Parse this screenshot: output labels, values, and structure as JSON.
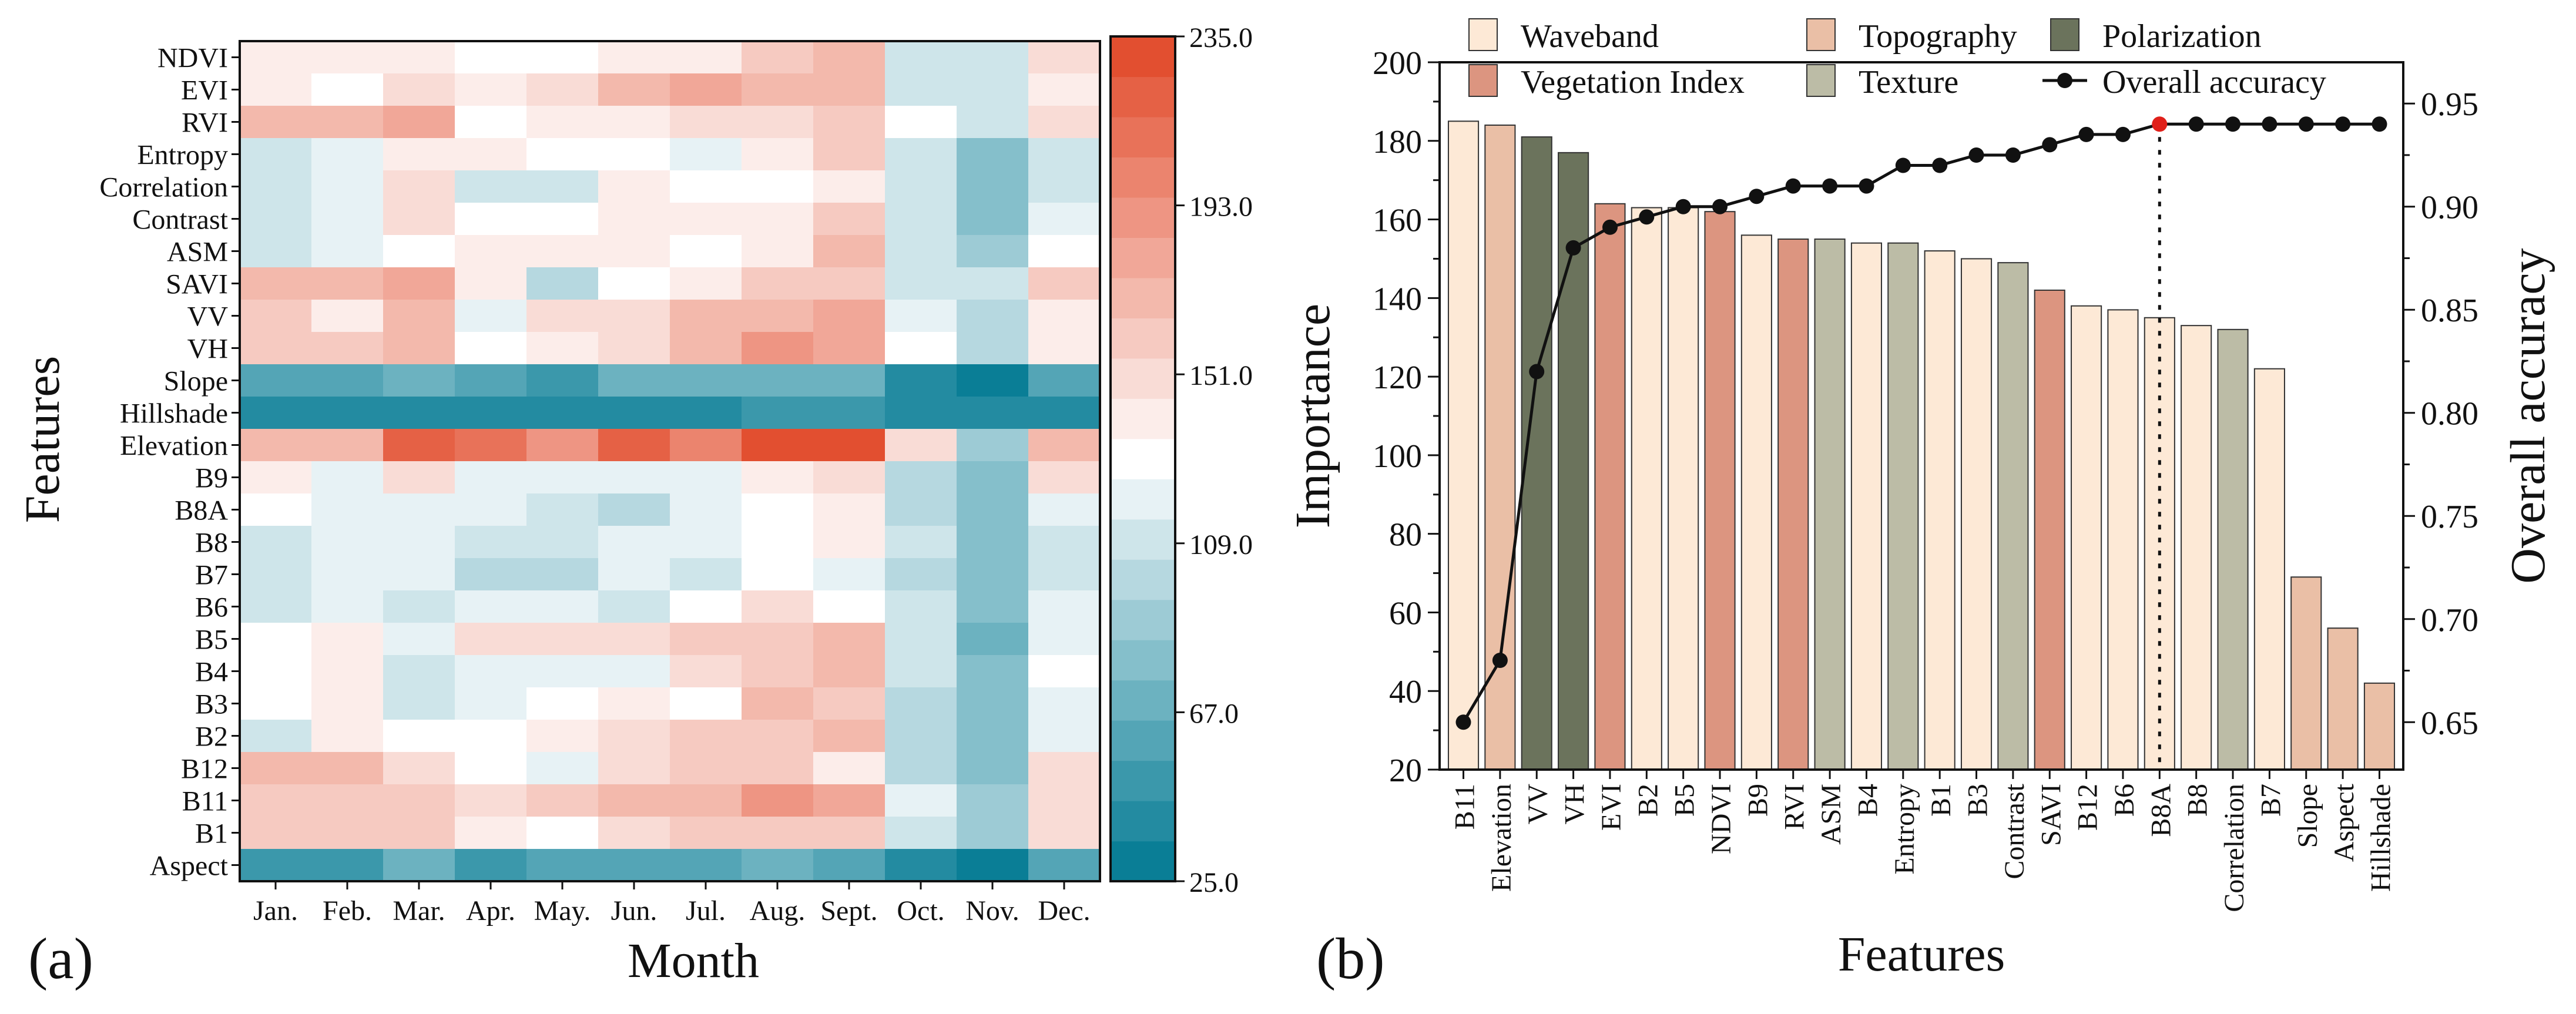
{
  "panel_labels": {
    "a": "(a)",
    "b": "(b)"
  },
  "colors": {
    "waveband": "#fde9d6",
    "vegetation_index": "#dc9580",
    "topography": "#eabfa6",
    "texture": "#bcbca6",
    "polarization": "#6b735c",
    "line": "#111111",
    "highlight": "#e0201a"
  },
  "chart_data": [
    {
      "type": "heatmap",
      "title": "",
      "xlabel": "Month",
      "ylabel": "Features",
      "x_categories": [
        "Jan.",
        "Feb.",
        "Mar.",
        "Apr.",
        "May.",
        "Jun.",
        "Jul.",
        "Aug.",
        "Sept.",
        "Oct.",
        "Nov.",
        "Dec."
      ],
      "y_categories": [
        "NDVI",
        "EVI",
        "RVI",
        "Entropy",
        "Correlation",
        "Contrast",
        "ASM",
        "SAVI",
        "VV",
        "VH",
        "Slope",
        "Hillshade",
        "Elevation",
        "B9",
        "B8A",
        "B8",
        "B7",
        "B6",
        "B5",
        "B4",
        "B3",
        "B2",
        "B12",
        "B11",
        "B1",
        "Aspect"
      ],
      "values": [
        [
          135,
          135,
          135,
          130,
          128,
          135,
          135,
          162,
          165,
          112,
          112,
          150
        ],
        [
          138,
          128,
          145,
          135,
          145,
          168,
          180,
          165,
          165,
          112,
          108,
          140
        ],
        [
          168,
          168,
          178,
          128,
          140,
          138,
          145,
          148,
          160,
          125,
          108,
          150
        ],
        [
          112,
          118,
          138,
          138,
          125,
          128,
          122,
          135,
          160,
          108,
          78,
          108
        ],
        [
          112,
          118,
          148,
          105,
          110,
          135,
          130,
          130,
          135,
          108,
          80,
          112
        ],
        [
          105,
          118,
          148,
          128,
          128,
          135,
          135,
          140,
          155,
          105,
          82,
          118
        ],
        [
          112,
          118,
          128,
          135,
          135,
          135,
          130,
          135,
          165,
          108,
          85,
          128
        ],
        [
          170,
          165,
          178,
          140,
          100,
          130,
          138,
          158,
          158,
          108,
          108,
          155
        ],
        [
          155,
          135,
          168,
          122,
          150,
          148,
          165,
          165,
          180,
          122,
          100,
          140
        ],
        [
          160,
          155,
          165,
          130,
          135,
          150,
          165,
          185,
          182,
          125,
          95,
          140
        ],
        [
          55,
          55,
          65,
          55,
          50,
          70,
          65,
          65,
          72,
          42,
          32,
          55
        ],
        [
          40,
          35,
          40,
          35,
          35,
          40,
          40,
          45,
          50,
          35,
          35,
          40
        ],
        [
          170,
          172,
          215,
          208,
          185,
          218,
          195,
          228,
          228,
          150,
          92,
          165
        ],
        [
          135,
          120,
          150,
          115,
          118,
          118,
          115,
          138,
          150,
          95,
          82,
          150
        ],
        [
          125,
          118,
          115,
          115,
          112,
          100,
          115,
          125,
          135,
          100,
          80,
          115
        ],
        [
          110,
          115,
          115,
          108,
          108,
          118,
          115,
          128,
          135,
          108,
          75,
          112
        ],
        [
          108,
          115,
          115,
          102,
          102,
          115,
          108,
          125,
          118,
          95,
          75,
          108
        ],
        [
          108,
          115,
          108,
          118,
          118,
          108,
          130,
          148,
          132,
          105,
          80,
          118
        ],
        [
          125,
          135,
          115,
          148,
          148,
          148,
          155,
          160,
          165,
          110,
          70,
          115
        ],
        [
          125,
          135,
          105,
          115,
          115,
          115,
          145,
          162,
          165,
          105,
          75,
          125
        ],
        [
          125,
          135,
          112,
          118,
          128,
          135,
          130,
          165,
          155,
          100,
          82,
          115
        ],
        [
          110,
          135,
          125,
          125,
          135,
          145,
          155,
          162,
          165,
          100,
          80,
          118
        ],
        [
          165,
          165,
          150,
          125,
          118,
          148,
          158,
          160,
          140,
          100,
          82,
          150
        ],
        [
          160,
          160,
          160,
          148,
          160,
          170,
          172,
          190,
          175,
          115,
          90,
          148
        ],
        [
          155,
          162,
          160,
          140,
          128,
          150,
          155,
          160,
          160,
          105,
          85,
          145
        ],
        [
          52,
          52,
          70,
          52,
          55,
          62,
          55,
          65,
          60,
          38,
          30,
          60
        ]
      ],
      "colorbar": {
        "min": 25.0,
        "max": 235.0,
        "ticks": [
          "235.0",
          "193.0",
          "151.0",
          "109.0",
          "67.0",
          "25.0"
        ],
        "tick_values": [
          235,
          193,
          151,
          109,
          67,
          25
        ],
        "low_color": "#0a7e96",
        "mid_color": "#ffffff",
        "high_color": "#e24f30",
        "steps": 21
      },
      "legend": "colorbar right"
    },
    {
      "type": "bar",
      "title": "",
      "xlabel": "Features",
      "ylabel": "Importance",
      "y2label": "Overall accuracy",
      "categories": [
        "B11",
        "Elevation",
        "VV",
        "VH",
        "EVI",
        "B2",
        "B5",
        "NDVI",
        "B9",
        "RVI",
        "ASM",
        "B4",
        "Entropy",
        "B1",
        "B3",
        "Contrast",
        "SAVI",
        "B12",
        "B6",
        "B8A",
        "B8",
        "Correlation",
        "B7",
        "Slope",
        "Aspect",
        "Hillshade"
      ],
      "groups": [
        "Waveband",
        "Topography",
        "Polarization",
        "Polarization",
        "Vegetation Index",
        "Waveband",
        "Waveband",
        "Vegetation Index",
        "Waveband",
        "Vegetation Index",
        "Texture",
        "Waveband",
        "Texture",
        "Waveband",
        "Waveband",
        "Texture",
        "Vegetation Index",
        "Waveband",
        "Waveband",
        "Waveband",
        "Waveband",
        "Texture",
        "Waveband",
        "Topography",
        "Topography",
        "Topography"
      ],
      "values": [
        185,
        184,
        181,
        177,
        164,
        163,
        163,
        162,
        156,
        155,
        155,
        154,
        154,
        152,
        150,
        149,
        142,
        138,
        137,
        135,
        133,
        132,
        122,
        69,
        56,
        42
      ],
      "series": [
        {
          "name": "Overall accuracy",
          "axis": "right",
          "values": [
            0.65,
            0.68,
            0.82,
            0.88,
            0.89,
            0.895,
            0.9,
            0.9,
            0.905,
            0.91,
            0.91,
            0.91,
            0.92,
            0.92,
            0.925,
            0.925,
            0.93,
            0.935,
            0.935,
            0.94,
            0.94,
            0.94,
            0.94,
            0.94,
            0.94,
            0.94
          ]
        }
      ],
      "highlight_category": "B8A",
      "ylim": [
        20,
        200
      ],
      "yticks": [
        20,
        40,
        60,
        80,
        100,
        120,
        140,
        160,
        180,
        200
      ],
      "y2lim": [
        0.627,
        0.97
      ],
      "y2ticks": [
        0.65,
        0.7,
        0.75,
        0.8,
        0.85,
        0.9,
        0.95
      ],
      "y2tick_labels": [
        "0.65",
        "0.70",
        "0.75",
        "0.80",
        "0.85",
        "0.90",
        "0.95"
      ],
      "legend": [
        {
          "label": "Waveband",
          "key": "waveband",
          "kind": "patch"
        },
        {
          "label": "Topography",
          "key": "topography",
          "kind": "patch"
        },
        {
          "label": "Polarization",
          "key": "polarization",
          "kind": "patch"
        },
        {
          "label": "Vegetation Index",
          "key": "vegetation_index",
          "kind": "patch"
        },
        {
          "label": "Texture",
          "key": "texture",
          "kind": "patch"
        },
        {
          "label": "Overall accuracy",
          "key": "line",
          "kind": "line"
        }
      ],
      "legend_position": "top"
    }
  ]
}
